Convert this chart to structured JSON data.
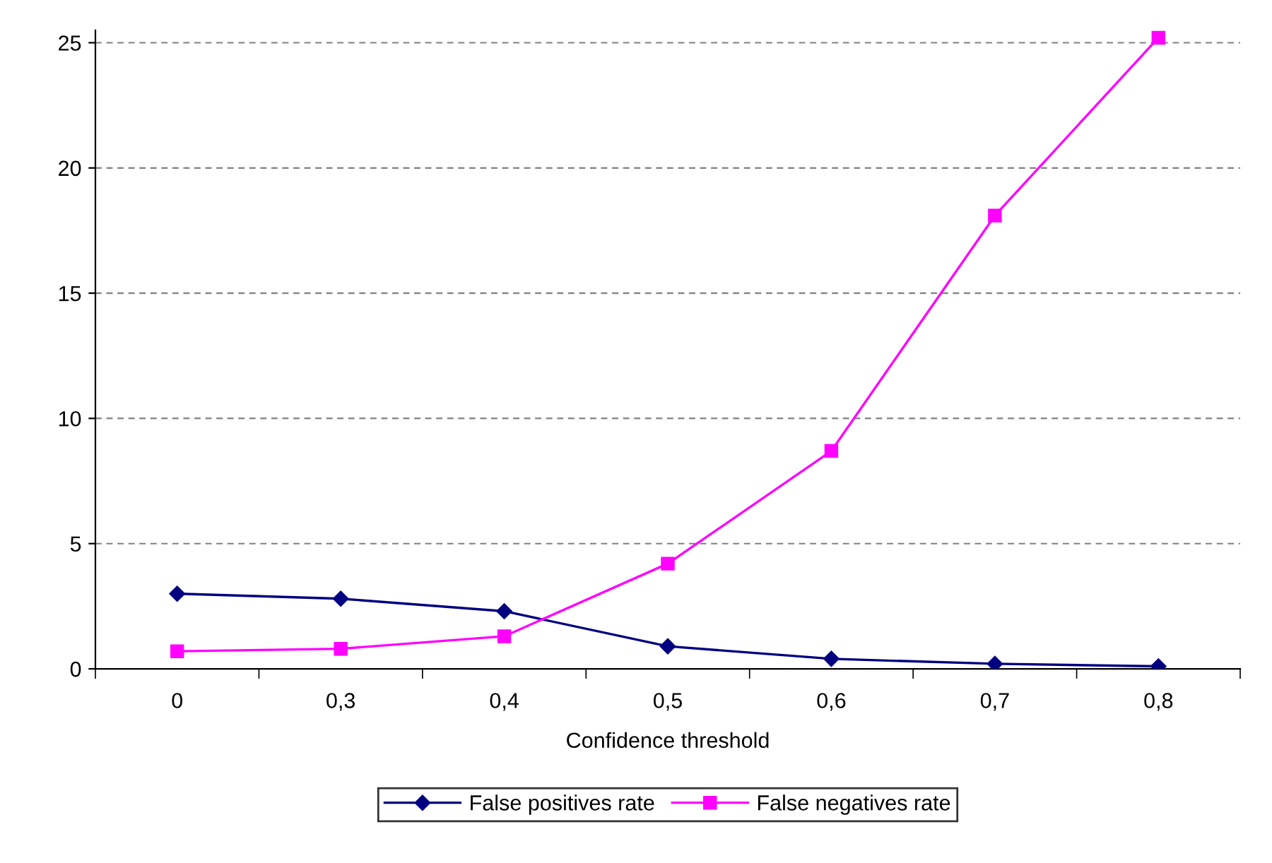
{
  "chart_data": {
    "type": "line",
    "xlabel": "Confidence threshold",
    "categories": [
      "0",
      "0,3",
      "0,4",
      "0,5",
      "0,6",
      "0,7",
      "0,8"
    ],
    "series": [
      {
        "name": "False positives rate",
        "color": "#000080",
        "marker": "diamond",
        "values": [
          3.0,
          2.8,
          2.3,
          0.9,
          0.4,
          0.2,
          0.1
        ]
      },
      {
        "name": "False negatives rate",
        "color": "#ff00ff",
        "marker": "square",
        "values": [
          0.7,
          0.8,
          1.3,
          4.2,
          8.7,
          18.1,
          25.2
        ]
      }
    ],
    "ylim": [
      0,
      25.5
    ],
    "yticks": [
      0,
      5,
      10,
      15,
      20,
      25
    ],
    "grid": "y",
    "legend": "bottom",
    "line_style": "solid"
  }
}
